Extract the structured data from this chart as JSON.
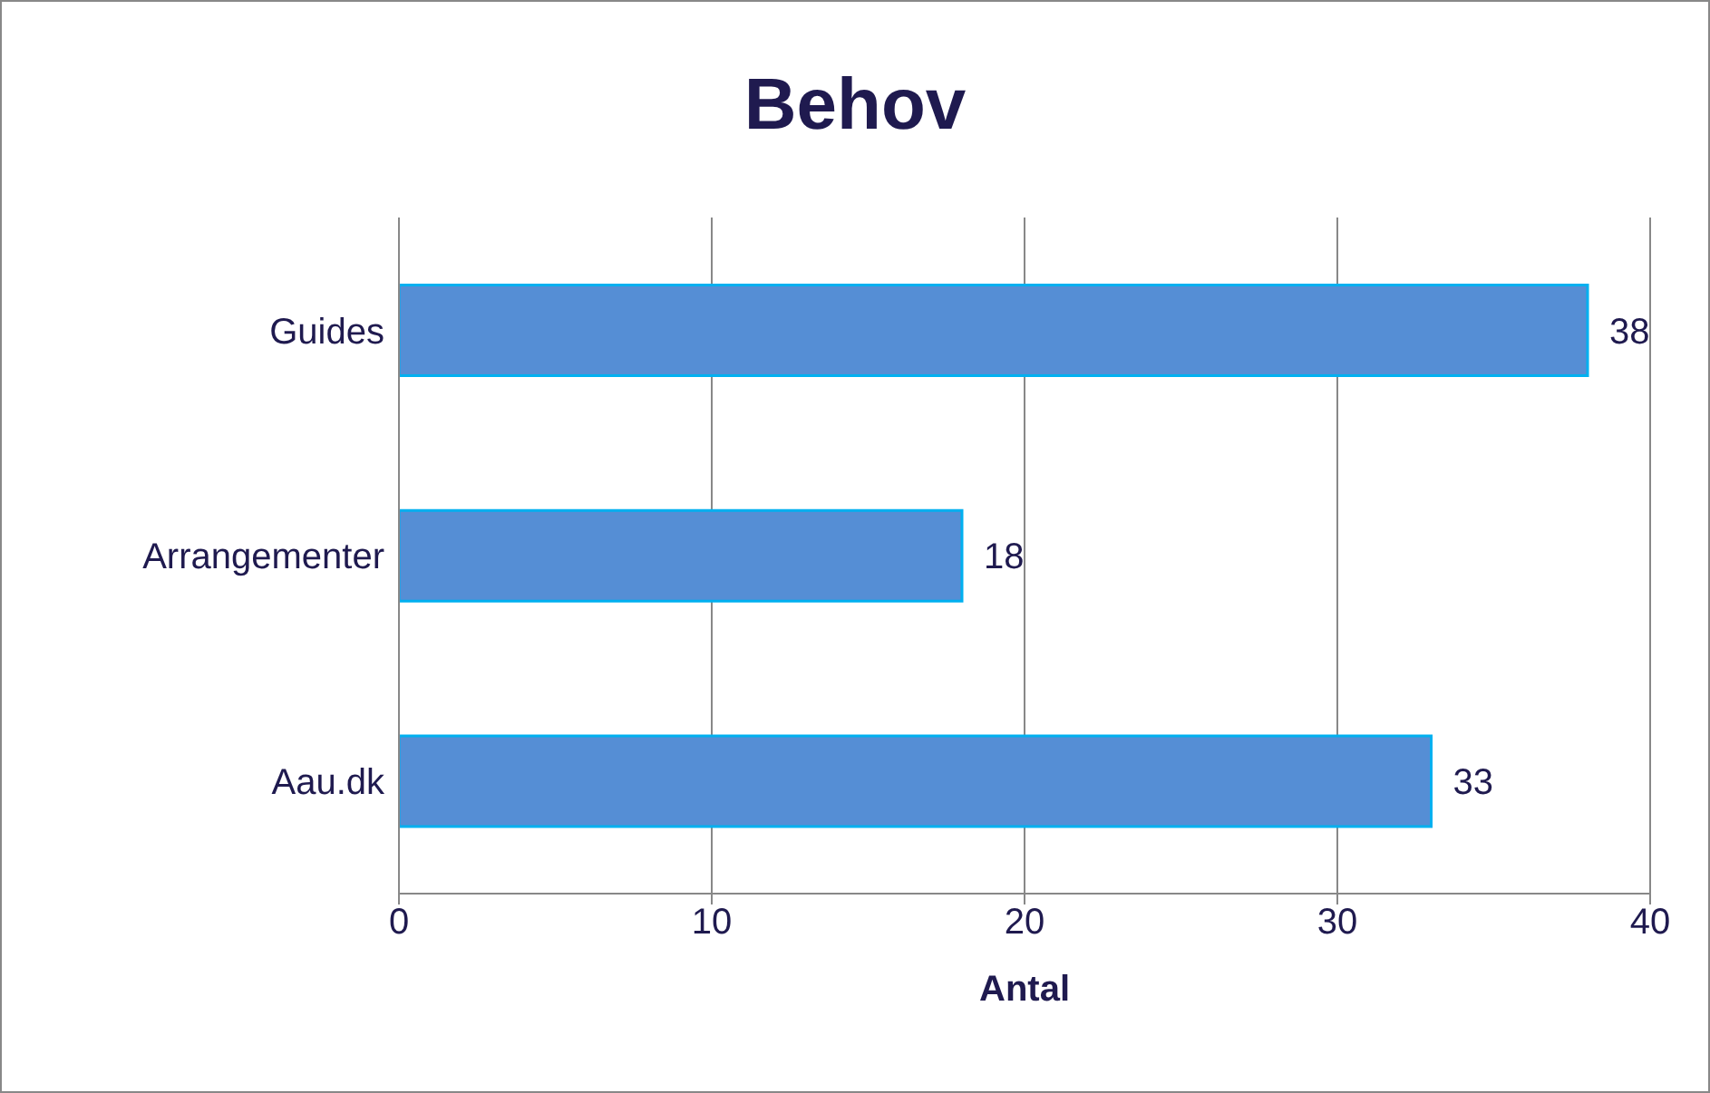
{
  "chart_data": {
    "type": "bar",
    "orientation": "horizontal",
    "title": "Behov",
    "xlabel": "Antal",
    "categories": [
      "Guides",
      "Arrangementer",
      "Aau.dk"
    ],
    "values": [
      38,
      18,
      33
    ],
    "color": "#558ed5",
    "xlim": [
      0,
      40
    ],
    "xticks": [
      0,
      10,
      20,
      30,
      40
    ],
    "grid": "x",
    "data_labels": true
  }
}
